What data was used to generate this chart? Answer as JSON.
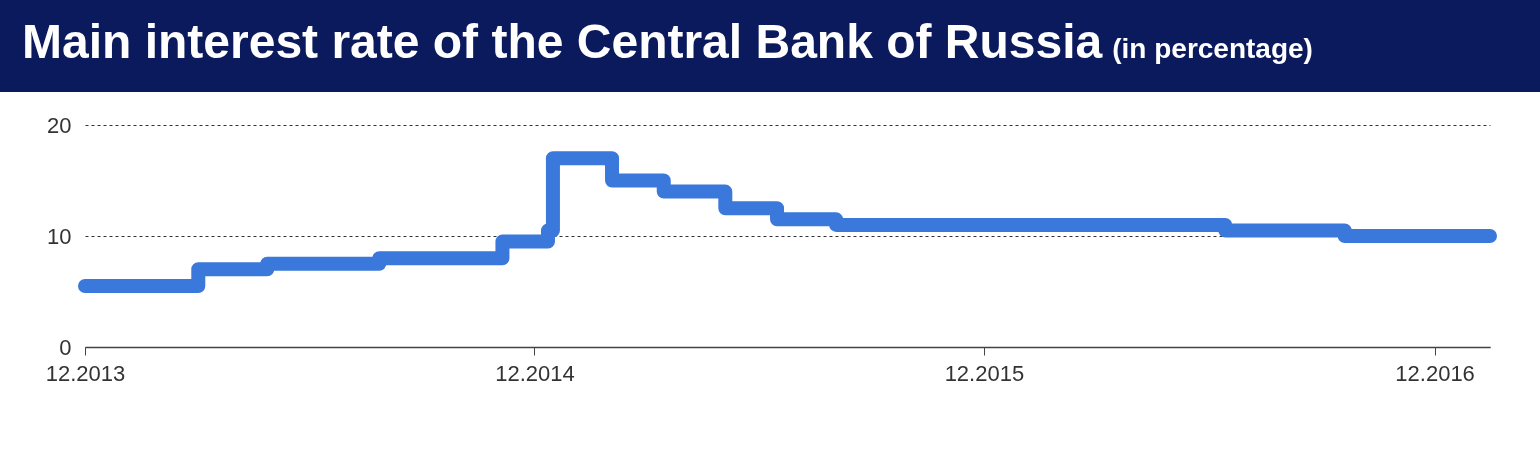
{
  "chart_data": {
    "type": "step",
    "title": "Main interest rate of the Central Bank of Russia",
    "subtitle": "(in percentage)",
    "x": [
      "2013-12-01",
      "2014-03-03",
      "2014-04-28",
      "2014-07-28",
      "2014-11-05",
      "2014-12-12",
      "2014-12-16",
      "2015-02-02",
      "2015-03-16",
      "2015-05-05",
      "2015-06-16",
      "2015-08-03",
      "2016-06-14",
      "2016-09-19",
      "2017-01-15"
    ],
    "series": [
      {
        "color": "#3a78dc",
        "values": [
          5.5,
          7,
          7.5,
          8,
          9.5,
          10.5,
          17,
          15,
          14,
          12.5,
          11.5,
          11,
          10.5,
          10,
          10
        ]
      }
    ],
    "xlim": [
      "2013-12-01",
      "2017-01-15"
    ],
    "xticks": [
      {
        "value": "2013-12-01",
        "label": "12.2013"
      },
      {
        "value": "2014-12-01",
        "label": "12.2014"
      },
      {
        "value": "2015-12-01",
        "label": "12.2015"
      },
      {
        "value": "2016-12-01",
        "label": "12.2016"
      }
    ],
    "ylim": [
      0,
      20
    ],
    "yticks": [
      0,
      10,
      20
    ],
    "grid": "y",
    "line_style": "solid"
  }
}
